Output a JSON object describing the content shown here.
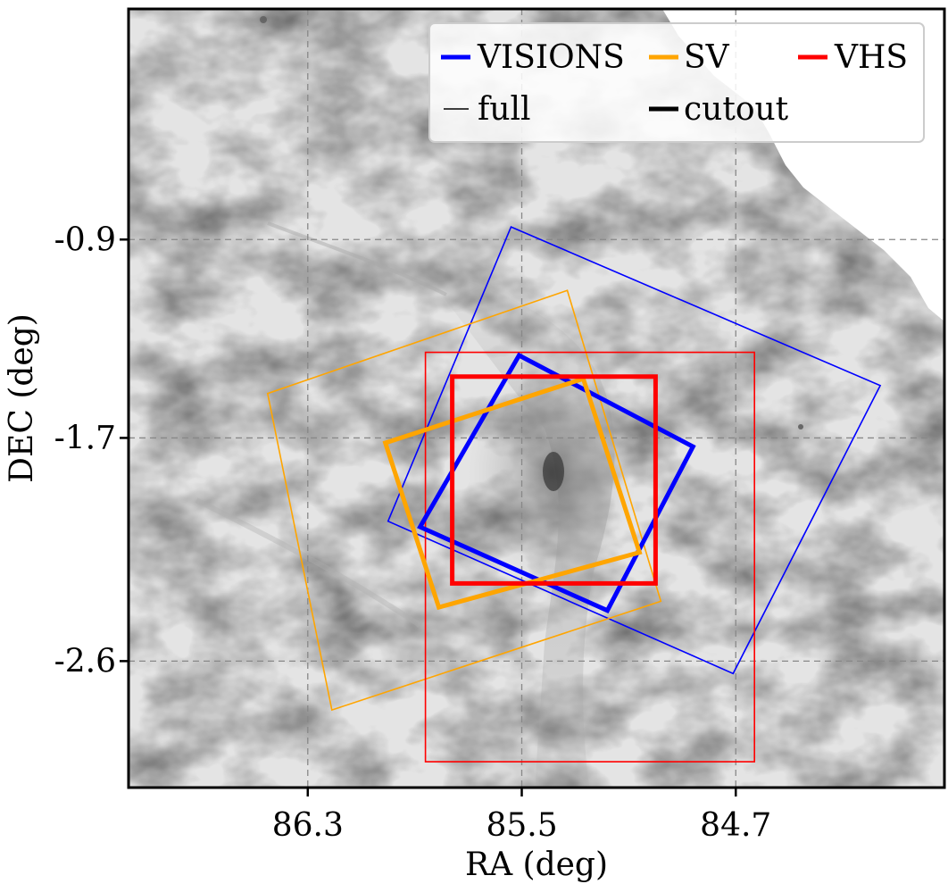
{
  "chart_data": {
    "type": "scatter",
    "title": "",
    "xlabel": "RA (deg)",
    "ylabel": "DEC (deg)",
    "x_inverted": true,
    "xlim": [
      86.97,
      83.92
    ],
    "ylim": [
      -3.11,
      0.03
    ],
    "x_ticks": [
      86.3,
      85.5,
      84.7
    ],
    "x_tick_labels": [
      "86.3",
      "85.5",
      "84.7"
    ],
    "y_ticks": [
      -0.9,
      -1.7,
      -2.6
    ],
    "y_tick_labels": [
      "-0.9",
      "-1.7",
      "-2.6"
    ],
    "grid": true,
    "background": "grayscale dust/extinction map",
    "legend": {
      "placement": "top-right",
      "entries": [
        {
          "label": "VISIONS",
          "color": "#0000ff",
          "style": "thick"
        },
        {
          "label": "SV",
          "color": "#ffa500",
          "style": "thick"
        },
        {
          "label": "VHS",
          "color": "#ff0000",
          "style": "thick"
        },
        {
          "label": "full",
          "color": "#000000",
          "style": "thin"
        },
        {
          "label": "cutout",
          "color": "#000000",
          "style": "thick"
        }
      ]
    },
    "series": [
      {
        "survey": "VISIONS",
        "kind": "full",
        "color": "#0000ff",
        "corners": [
          [
            85.54,
            -0.849
          ],
          [
            84.16,
            -1.489
          ],
          [
            84.71,
            -2.65
          ],
          [
            86.0,
            -2.036
          ]
        ]
      },
      {
        "survey": "SV",
        "kind": "full",
        "color": "#ffa500",
        "corners": [
          [
            85.33,
            -1.105
          ],
          [
            86.45,
            -1.521
          ],
          [
            86.21,
            -2.797
          ],
          [
            84.98,
            -2.359
          ]
        ]
      },
      {
        "survey": "VHS",
        "kind": "full",
        "color": "#ff0000",
        "corners": [
          [
            85.86,
            -1.355
          ],
          [
            84.63,
            -1.355
          ],
          [
            84.63,
            -3.006
          ],
          [
            85.86,
            -3.006
          ]
        ]
      },
      {
        "survey": "VISIONS",
        "kind": "cutout",
        "color": "#0000ff",
        "corners": [
          [
            85.51,
            -1.367
          ],
          [
            84.86,
            -1.735
          ],
          [
            85.18,
            -2.396
          ],
          [
            85.88,
            -2.059
          ]
        ]
      },
      {
        "survey": "SV",
        "kind": "cutout",
        "color": "#ffa500",
        "corners": [
          [
            85.27,
            -1.461
          ],
          [
            86.01,
            -1.72
          ],
          [
            85.81,
            -2.383
          ],
          [
            85.06,
            -2.162
          ]
        ]
      },
      {
        "survey": "VHS",
        "kind": "cutout",
        "color": "#ff0000",
        "corners": [
          [
            85.76,
            -1.453
          ],
          [
            85.0,
            -1.453
          ],
          [
            85.0,
            -2.287
          ],
          [
            85.76,
            -2.287
          ]
        ]
      }
    ]
  }
}
